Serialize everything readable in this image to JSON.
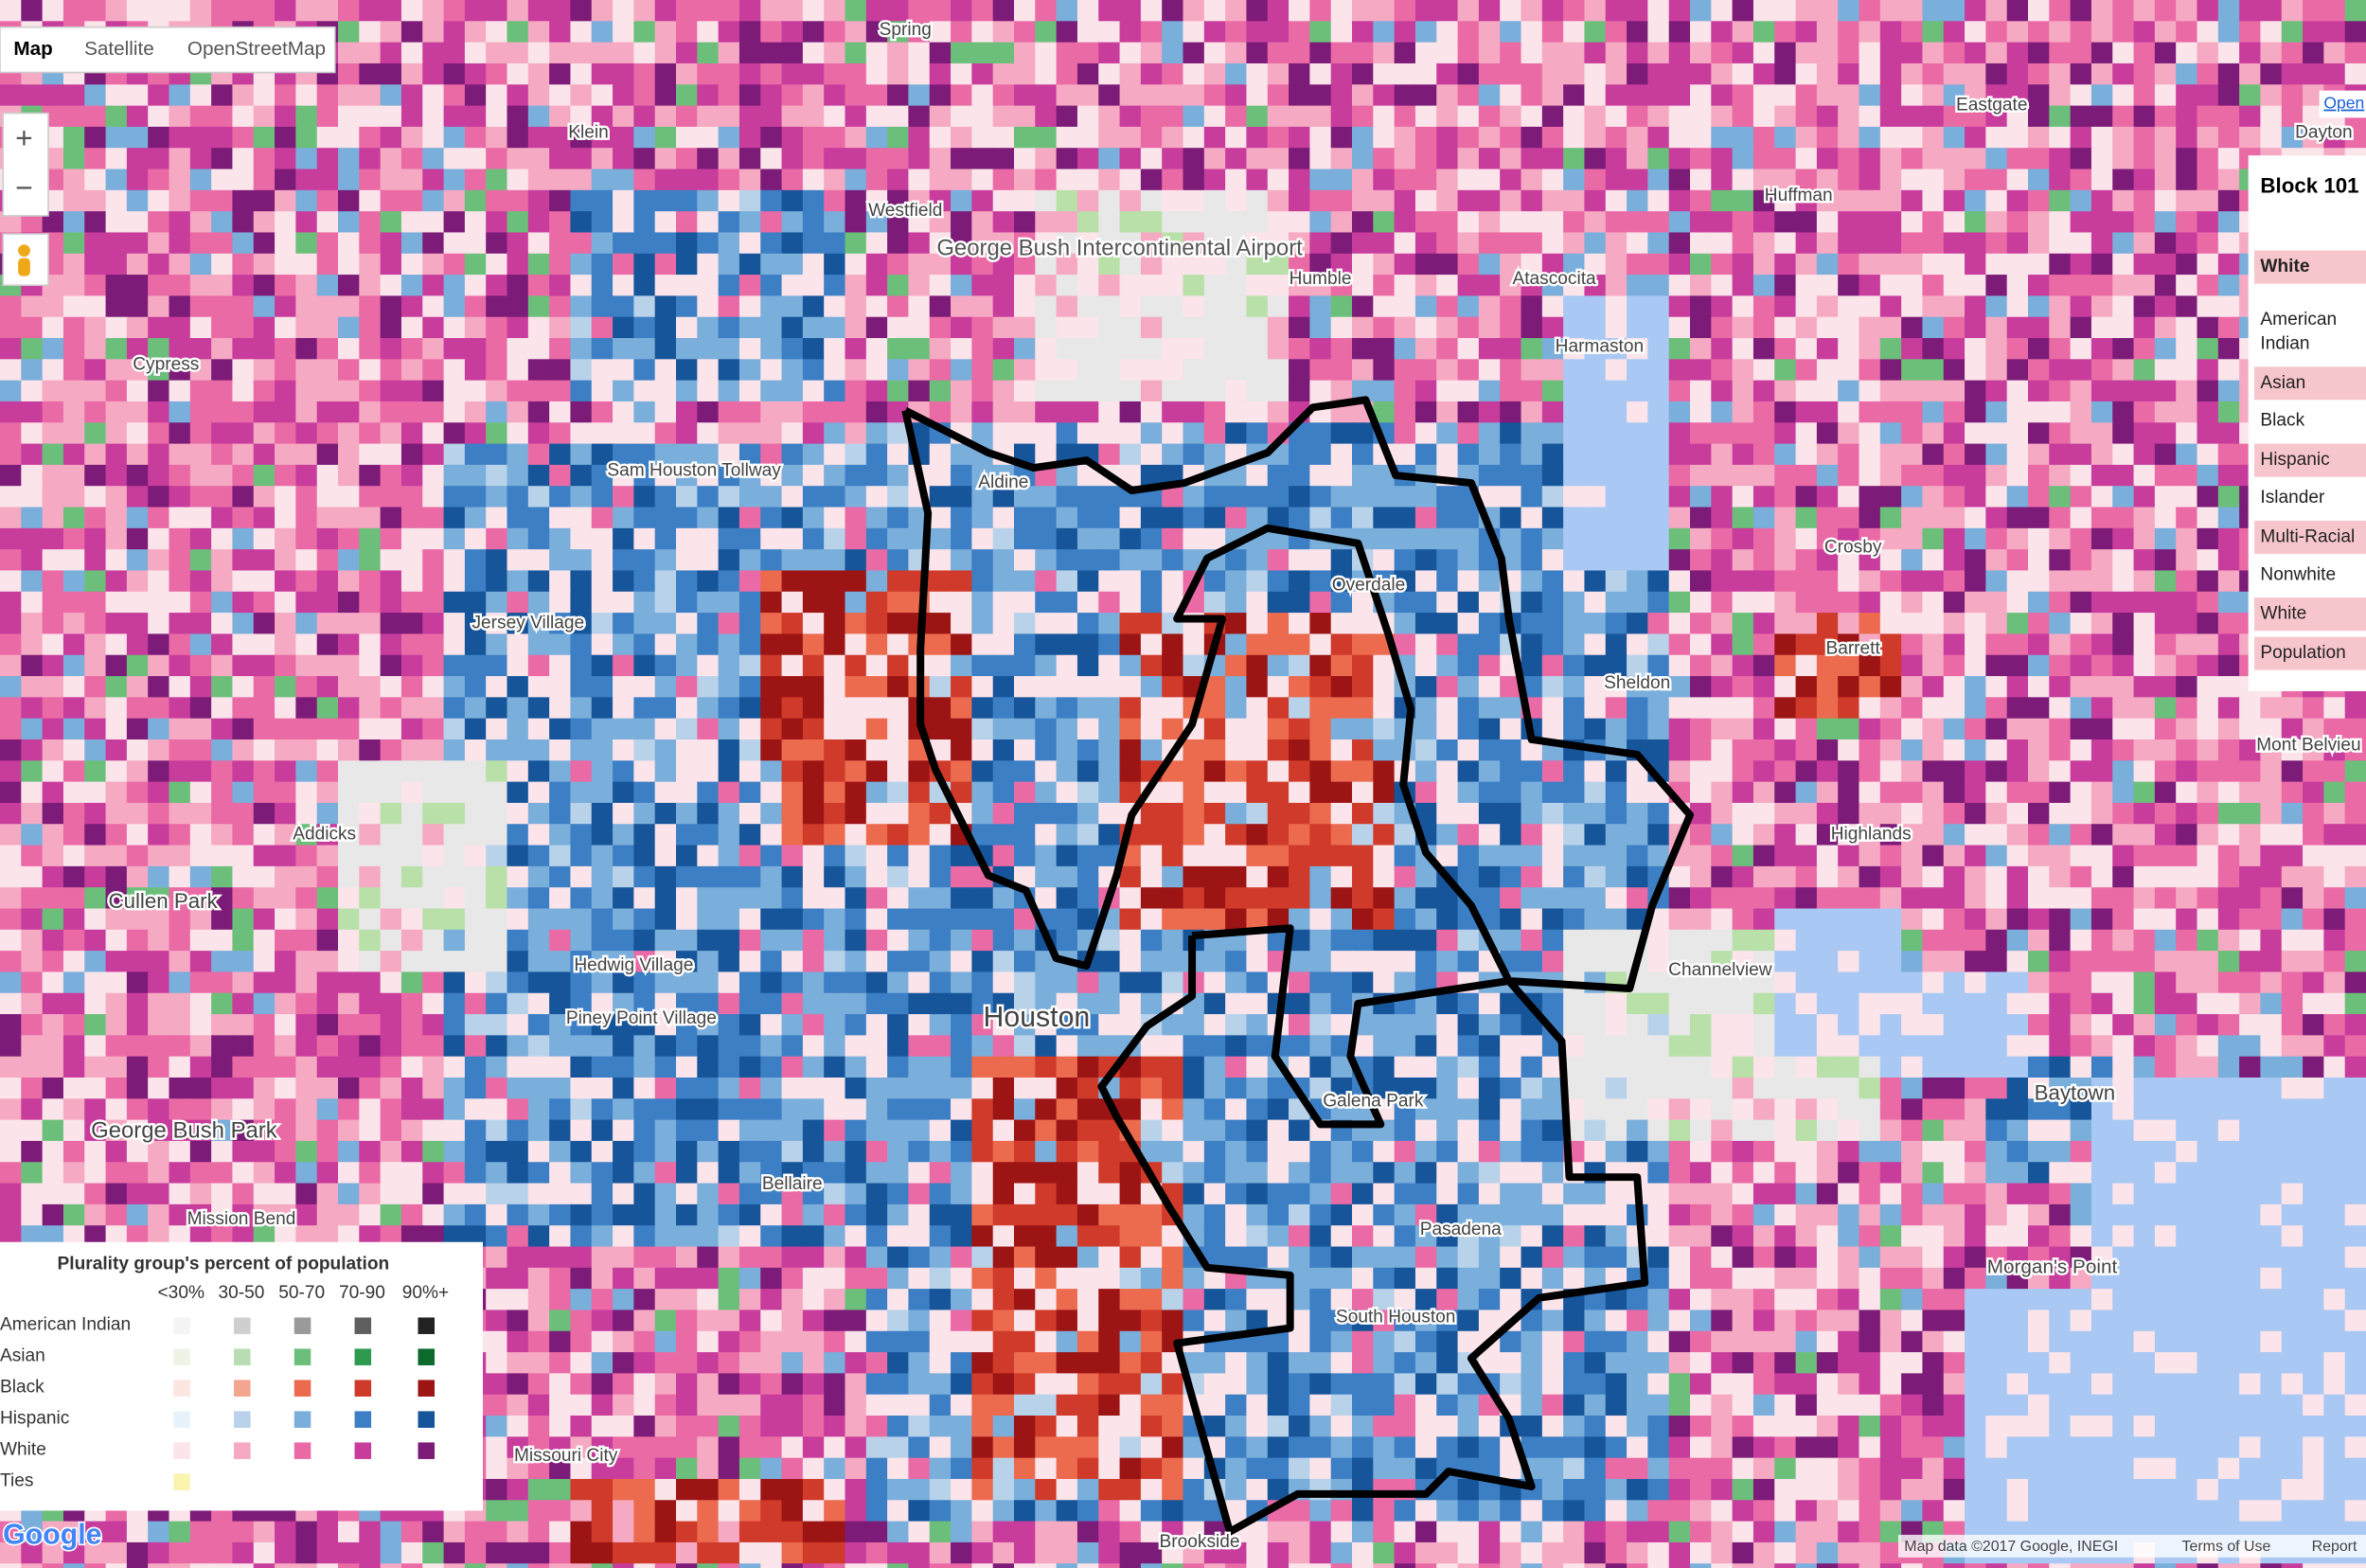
{
  "map_type_buttons": [
    "Map",
    "Satellite",
    "OpenStreetMap"
  ],
  "zoom": {
    "in": "+",
    "out": "−"
  },
  "places": [
    "Spring",
    "Klein",
    "Westfield",
    "George Bush Intercontinental Airport",
    "Humble",
    "Atascocita",
    "Huffman",
    "Eastgate",
    "Dayton",
    "Cypress",
    "Aldine",
    "Jersey Village",
    "Harmaston",
    "Sheldon",
    "Channelview",
    "Addicks",
    "Houston",
    "Galena Park",
    "Pasadena",
    "South Houston",
    "Hedwig Village",
    "Piney Point Village",
    "George Bush Park",
    "Morgan's Point",
    "Baytown",
    "Crosby",
    "Barrett",
    "Mont Belvieu",
    "Bellaire",
    "Missouri City",
    "Brookside",
    "Highlands",
    "Sam Houston Tollway",
    "Mission Bend",
    "Cullen Park",
    "Overdale"
  ],
  "info_panel": {
    "title": "Block 101",
    "rows": [
      {
        "label": "White",
        "highlighted": true,
        "bold": true
      },
      {
        "label": "American Indian",
        "highlighted": false
      },
      {
        "label": "Asian",
        "highlighted": true
      },
      {
        "label": "Black",
        "highlighted": false
      },
      {
        "label": "Hispanic",
        "highlighted": true
      },
      {
        "label": "Islander",
        "highlighted": false
      },
      {
        "label": "Multi-Racial",
        "highlighted": true
      },
      {
        "label": "Nonwhite",
        "highlighted": false
      },
      {
        "label": "White",
        "highlighted": true
      },
      {
        "label": "Population",
        "highlighted": true
      }
    ]
  },
  "legend": {
    "title": "Plurality group's percent of population",
    "columns": [
      "<30%",
      "30-50",
      "50-70",
      "70-90",
      "90%+"
    ],
    "rows": [
      {
        "label": "American Indian",
        "colors": [
          "#f4f4f4",
          "#cfcfcf",
          "#9a9a9a",
          "#5f5f5f",
          "#222222"
        ]
      },
      {
        "label": "Asian",
        "colors": [
          "#eef3e6",
          "#b9dcb4",
          "#6cbf7a",
          "#2e9a50",
          "#0b6a2c"
        ]
      },
      {
        "label": "Black",
        "colors": [
          "#fbe6e0",
          "#f4a58f",
          "#ec6a4e",
          "#cf3a2a",
          "#9c1414"
        ]
      },
      {
        "label": "Hispanic",
        "colors": [
          "#e8f2fb",
          "#b8d2ea",
          "#7aaedb",
          "#3d7fc4",
          "#16559a"
        ]
      },
      {
        "label": "White",
        "colors": [
          "#fbe4ea",
          "#f6a9c2",
          "#ea6aa6",
          "#c83c9c",
          "#7c1b78"
        ]
      },
      {
        "label": "Ties",
        "colors": [
          "#fbf3b0"
        ]
      }
    ]
  },
  "footer": {
    "attribution": "Map data ©2017 Google, INEGI",
    "terms": "Terms of Use",
    "report": "Report",
    "logo": "Google",
    "open": "Open"
  }
}
